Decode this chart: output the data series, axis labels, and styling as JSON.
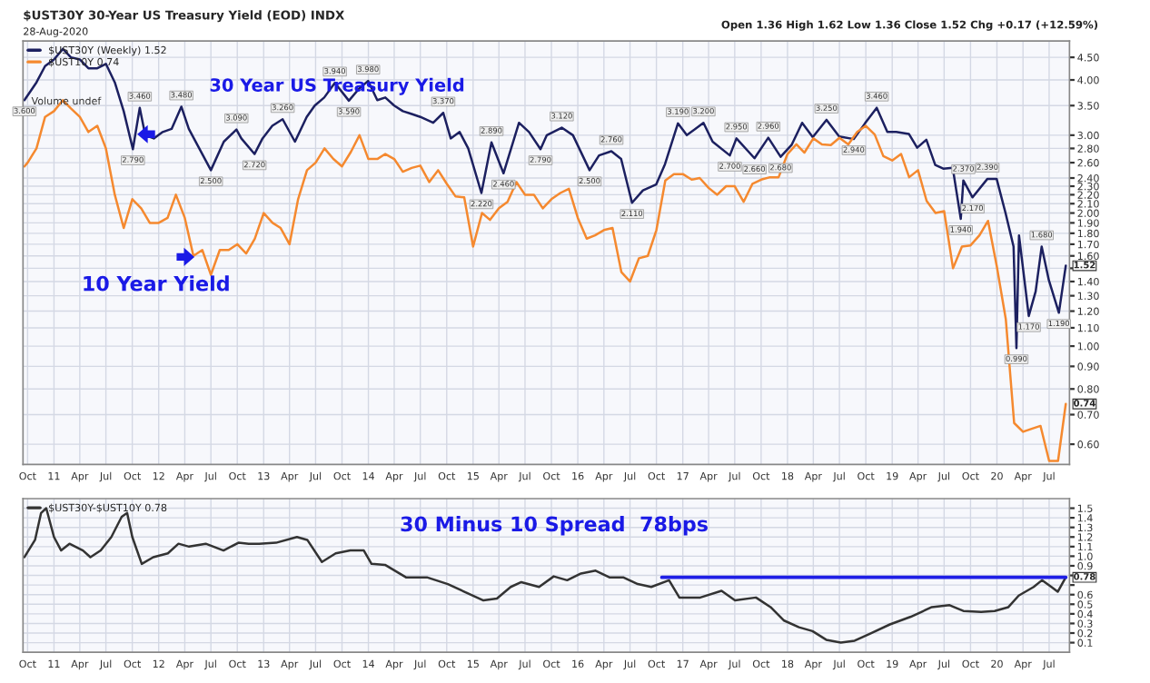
{
  "chart_data": [
    {
      "type": "line",
      "title": "$UST30Y 30-Year US Treasury Yield (EOD) INDX",
      "subtitle": "28-Aug-2020",
      "log": "y",
      "grid": true,
      "legend": "top left",
      "xlim": [
        "2010-09-15",
        "2020-09-10"
      ],
      "ylim": [
        0.54,
        4.9
      ],
      "xticks": [
        {
          "value": "2010-10-01",
          "label": "Oct"
        },
        {
          "value": "2011-01-01",
          "label": "11"
        },
        {
          "value": "2011-04-01",
          "label": "Apr"
        },
        {
          "value": "2011-07-01",
          "label": "Jul"
        },
        {
          "value": "2011-10-01",
          "label": "Oct"
        },
        {
          "value": "2012-01-01",
          "label": "12"
        },
        {
          "value": "2012-04-01",
          "label": "Apr"
        },
        {
          "value": "2012-07-01",
          "label": "Jul"
        },
        {
          "value": "2012-10-01",
          "label": "Oct"
        },
        {
          "value": "2013-01-01",
          "label": "13"
        },
        {
          "value": "2013-04-01",
          "label": "Apr"
        },
        {
          "value": "2013-07-01",
          "label": "Jul"
        },
        {
          "value": "2013-10-01",
          "label": "Oct"
        },
        {
          "value": "2014-01-01",
          "label": "14"
        },
        {
          "value": "2014-04-01",
          "label": "Apr"
        },
        {
          "value": "2014-07-01",
          "label": "Jul"
        },
        {
          "value": "2014-10-01",
          "label": "Oct"
        },
        {
          "value": "2015-01-01",
          "label": "15"
        },
        {
          "value": "2015-04-01",
          "label": "Apr"
        },
        {
          "value": "2015-07-01",
          "label": "Jul"
        },
        {
          "value": "2015-10-01",
          "label": "Oct"
        },
        {
          "value": "2016-01-01",
          "label": "16"
        },
        {
          "value": "2016-04-01",
          "label": "Apr"
        },
        {
          "value": "2016-07-01",
          "label": "Jul"
        },
        {
          "value": "2016-10-01",
          "label": "Oct"
        },
        {
          "value": "2017-01-01",
          "label": "17"
        },
        {
          "value": "2017-04-01",
          "label": "Apr"
        },
        {
          "value": "2017-07-01",
          "label": "Jul"
        },
        {
          "value": "2017-10-01",
          "label": "Oct"
        },
        {
          "value": "2018-01-01",
          "label": "18"
        },
        {
          "value": "2018-04-01",
          "label": "Apr"
        },
        {
          "value": "2018-07-01",
          "label": "Jul"
        },
        {
          "value": "2018-10-01",
          "label": "Oct"
        },
        {
          "value": "2019-01-01",
          "label": "19"
        },
        {
          "value": "2019-04-01",
          "label": "Apr"
        },
        {
          "value": "2019-07-01",
          "label": "Jul"
        },
        {
          "value": "2019-10-01",
          "label": "Oct"
        },
        {
          "value": "2020-01-01",
          "label": "20"
        },
        {
          "value": "2020-04-01",
          "label": "Apr"
        },
        {
          "value": "2020-07-01",
          "label": "Jul"
        }
      ],
      "yticks": [
        {
          "value": 0.6,
          "label": "0.60"
        },
        {
          "value": 0.7,
          "label": "0.70"
        },
        {
          "value": 0.8,
          "label": "0.80"
        },
        {
          "value": 0.9,
          "label": "0.90"
        },
        {
          "value": 1.0,
          "label": "1.00"
        },
        {
          "value": 1.1,
          "label": "1.10"
        },
        {
          "value": 1.2,
          "label": "1.20"
        },
        {
          "value": 1.3,
          "label": "1.30"
        },
        {
          "value": 1.4,
          "label": "1.40"
        },
        {
          "value": 1.5,
          "label": null
        },
        {
          "value": 1.6,
          "label": "1.60"
        },
        {
          "value": 1.7,
          "label": "1.70"
        },
        {
          "value": 1.8,
          "label": "1.80"
        },
        {
          "value": 1.9,
          "label": "1.90"
        },
        {
          "value": 2.0,
          "label": "2.00"
        },
        {
          "value": 2.1,
          "label": "2.10"
        },
        {
          "value": 2.2,
          "label": "2.20"
        },
        {
          "value": 2.3,
          "label": "2.30"
        },
        {
          "value": 2.4,
          "label": "2.40"
        },
        {
          "value": 2.6,
          "label": "2.60"
        },
        {
          "value": 2.8,
          "label": "2.80"
        },
        {
          "value": 3.0,
          "label": "3.00"
        },
        {
          "value": 3.5,
          "label": "3.50"
        },
        {
          "value": 4.0,
          "label": "4.00"
        },
        {
          "value": 4.5,
          "label": "4.50"
        }
      ],
      "series": [
        {
          "name": "$UST30Y (Weekly) 1.52",
          "color": "#1c2060",
          "x": [
            "2010-09-20",
            "2010-11-01",
            "2010-12-01",
            "2011-01-01",
            "2011-02-01",
            "2011-03-01",
            "2011-04-01",
            "2011-05-01",
            "2011-06-01",
            "2011-07-01",
            "2011-08-01",
            "2011-09-01",
            "2011-10-03",
            "2011-10-27",
            "2011-11-15",
            "2011-12-15",
            "2012-01-15",
            "2012-02-15",
            "2012-03-20",
            "2012-04-15",
            "2012-05-15",
            "2012-07-01",
            "2012-08-15",
            "2012-09-28",
            "2012-10-15",
            "2012-11-30",
            "2012-12-28",
            "2013-01-31",
            "2013-03-08",
            "2013-04-20",
            "2013-05-31",
            "2013-06-28",
            "2013-07-31",
            "2013-09-06",
            "2013-10-25",
            "2013-11-29",
            "2013-12-31",
            "2014-02-01",
            "2014-03-01",
            "2014-04-01",
            "2014-05-01",
            "2014-06-01",
            "2014-07-01",
            "2014-08-15",
            "2014-09-19",
            "2014-10-15",
            "2014-11-15",
            "2014-12-15",
            "2015-01-30",
            "2015-03-06",
            "2015-04-17",
            "2015-06-10",
            "2015-07-15",
            "2015-08-24",
            "2015-09-15",
            "2015-11-06",
            "2015-12-15",
            "2016-02-11",
            "2016-03-15",
            "2016-04-27",
            "2016-05-31",
            "2016-07-08",
            "2016-08-15",
            "2016-09-30",
            "2016-10-31",
            "2016-12-15",
            "2017-01-15",
            "2017-03-14",
            "2017-04-15",
            "2017-06-14",
            "2017-07-07",
            "2017-09-08",
            "2017-10-26",
            "2017-12-08",
            "2018-01-15",
            "2018-02-21",
            "2018-03-30",
            "2018-05-17",
            "2018-06-30",
            "2018-08-20",
            "2018-09-28",
            "2018-11-08",
            "2018-12-15",
            "2019-01-15",
            "2019-02-28",
            "2019-03-29",
            "2019-04-30",
            "2019-05-31",
            "2019-06-28",
            "2019-07-31",
            "2019-08-28",
            "2019-09-06",
            "2019-10-08",
            "2019-11-29",
            "2019-12-31",
            "2020-01-31",
            "2020-02-28",
            "2020-03-09",
            "2020-03-18",
            "2020-04-21",
            "2020-05-15",
            "2020-06-05",
            "2020-06-30",
            "2020-08-04",
            "2020-08-28"
          ],
          "values": [
            3.6,
            3.95,
            4.3,
            4.45,
            4.7,
            4.5,
            4.45,
            4.25,
            4.25,
            4.35,
            3.95,
            3.4,
            2.79,
            3.46,
            3.0,
            2.95,
            3.05,
            3.1,
            3.48,
            3.1,
            2.85,
            2.5,
            2.9,
            3.09,
            2.95,
            2.72,
            2.95,
            3.15,
            3.26,
            2.9,
            3.3,
            3.5,
            3.65,
            3.94,
            3.59,
            3.82,
            3.98,
            3.6,
            3.65,
            3.5,
            3.4,
            3.35,
            3.3,
            3.2,
            3.37,
            2.95,
            3.05,
            2.8,
            2.22,
            2.89,
            2.46,
            3.2,
            3.05,
            2.79,
            3.0,
            3.12,
            3.0,
            2.5,
            2.7,
            2.76,
            2.65,
            2.11,
            2.25,
            2.32,
            2.58,
            3.19,
            3.0,
            3.2,
            2.9,
            2.7,
            2.95,
            2.66,
            2.96,
            2.68,
            2.85,
            3.2,
            2.97,
            3.25,
            2.98,
            2.94,
            3.19,
            3.46,
            3.05,
            3.05,
            3.02,
            2.81,
            2.93,
            2.57,
            2.52,
            2.53,
            1.94,
            2.37,
            2.17,
            2.39,
            2.39,
            2.0,
            1.68,
            0.99,
            1.78,
            1.17,
            1.33,
            1.68,
            1.41,
            1.19,
            1.52
          ]
        },
        {
          "name": "$UST10Y 0.74",
          "color": "#f5892f",
          "x": [
            "2010-09-20",
            "2010-10-01",
            "2010-11-01",
            "2010-12-01",
            "2011-01-01",
            "2011-02-01",
            "2011-03-01",
            "2011-04-01",
            "2011-05-01",
            "2011-06-01",
            "2011-07-01",
            "2011-08-01",
            "2011-09-01",
            "2011-10-01",
            "2011-11-01",
            "2011-12-01",
            "2012-01-01",
            "2012-02-01",
            "2012-03-01",
            "2012-04-01",
            "2012-05-01",
            "2012-06-01",
            "2012-07-01",
            "2012-08-01",
            "2012-09-01",
            "2012-10-01",
            "2012-11-01",
            "2012-12-01",
            "2013-01-01",
            "2013-02-01",
            "2013-03-01",
            "2013-04-01",
            "2013-05-01",
            "2013-06-01",
            "2013-07-01",
            "2013-08-01",
            "2013-09-01",
            "2013-10-01",
            "2013-11-01",
            "2013-12-01",
            "2014-01-01",
            "2014-02-01",
            "2014-03-01",
            "2014-04-01",
            "2014-05-01",
            "2014-06-01",
            "2014-07-01",
            "2014-08-01",
            "2014-09-01",
            "2014-10-01",
            "2014-11-01",
            "2014-12-01",
            "2015-01-01",
            "2015-02-01",
            "2015-03-01",
            "2015-04-01",
            "2015-05-01",
            "2015-06-01",
            "2015-07-01",
            "2015-08-01",
            "2015-09-01",
            "2015-10-01",
            "2015-11-01",
            "2015-12-01",
            "2016-01-01",
            "2016-02-01",
            "2016-03-01",
            "2016-04-01",
            "2016-05-01",
            "2016-06-01",
            "2016-07-01",
            "2016-08-01",
            "2016-09-01",
            "2016-10-01",
            "2016-11-01",
            "2016-12-01",
            "2017-01-01",
            "2017-02-01",
            "2017-03-01",
            "2017-04-01",
            "2017-05-01",
            "2017-06-01",
            "2017-07-01",
            "2017-08-01",
            "2017-09-01",
            "2017-10-01",
            "2017-11-01",
            "2017-12-01",
            "2018-01-01",
            "2018-02-01",
            "2018-03-01",
            "2018-04-01",
            "2018-05-01",
            "2018-06-01",
            "2018-07-01",
            "2018-08-01",
            "2018-09-01",
            "2018-10-01",
            "2018-11-01",
            "2018-12-01",
            "2019-01-01",
            "2019-02-01",
            "2019-03-01",
            "2019-04-01",
            "2019-05-01",
            "2019-06-01",
            "2019-07-01",
            "2019-08-01",
            "2019-09-01",
            "2019-10-01",
            "2019-11-01",
            "2019-12-01",
            "2020-01-01",
            "2020-02-01",
            "2020-03-01",
            "2020-04-01",
            "2020-05-01",
            "2020-06-01",
            "2020-07-01",
            "2020-08-01",
            "2020-08-28"
          ],
          "values": [
            2.55,
            2.6,
            2.8,
            3.3,
            3.4,
            3.6,
            3.45,
            3.3,
            3.05,
            3.15,
            2.8,
            2.2,
            1.85,
            2.15,
            2.05,
            1.9,
            1.9,
            1.95,
            2.2,
            1.95,
            1.6,
            1.65,
            1.45,
            1.65,
            1.65,
            1.7,
            1.62,
            1.75,
            2.0,
            1.9,
            1.85,
            1.7,
            2.15,
            2.5,
            2.6,
            2.8,
            2.65,
            2.55,
            2.75,
            3.0,
            2.65,
            2.65,
            2.72,
            2.65,
            2.48,
            2.53,
            2.56,
            2.35,
            2.5,
            2.33,
            2.18,
            2.17,
            1.68,
            2.0,
            1.93,
            2.05,
            2.12,
            2.35,
            2.2,
            2.2,
            2.05,
            2.15,
            2.22,
            2.27,
            1.95,
            1.75,
            1.78,
            1.83,
            1.85,
            1.47,
            1.4,
            1.58,
            1.6,
            1.83,
            2.37,
            2.45,
            2.45,
            2.38,
            2.4,
            2.28,
            2.2,
            2.3,
            2.3,
            2.12,
            2.33,
            2.38,
            2.41,
            2.41,
            2.72,
            2.86,
            2.74,
            2.95,
            2.86,
            2.85,
            2.96,
            2.86,
            3.05,
            3.15,
            3.01,
            2.69,
            2.63,
            2.72,
            2.41,
            2.5,
            2.13,
            2.0,
            2.02,
            1.5,
            1.68,
            1.69,
            1.78,
            1.92,
            1.51,
            1.15,
            0.67,
            0.64,
            0.65,
            0.66,
            0.55,
            0.55,
            0.74
          ]
        }
      ],
      "annotations": [
        "Open 1.36 High 1.62 Low 1.36 Close 1.52 Chg +0.17 (+12.59%)",
        "Volume undef",
        "30 Year US Treasury Yield",
        "10 Year Yield",
        {
          "text": "1.52",
          "x": "2020-08-28",
          "y": 1.52
        },
        {
          "text": "0.74",
          "x": "2020-08-28",
          "y": 0.74
        },
        {
          "text": "3.600",
          "x": "2010-09-20",
          "y": 3.6
        },
        {
          "text": "2.790",
          "x": "2011-10-03",
          "y": 2.79
        },
        {
          "text": "3.460",
          "x": "2011-10-27",
          "y": 3.46
        },
        {
          "text": "3.480",
          "x": "2012-03-20",
          "y": 3.48
        },
        {
          "text": "2.500",
          "x": "2012-07-01",
          "y": 2.5
        },
        {
          "text": "3.090",
          "x": "2012-09-28",
          "y": 3.09
        },
        {
          "text": "2.720",
          "x": "2012-11-30",
          "y": 2.72
        },
        {
          "text": "3.260",
          "x": "2013-03-08",
          "y": 3.26
        },
        {
          "text": "3.940",
          "x": "2013-09-06",
          "y": 3.94
        },
        {
          "text": "3.590",
          "x": "2013-10-25",
          "y": 3.59
        },
        {
          "text": "3.980",
          "x": "2013-12-31",
          "y": 3.98
        },
        {
          "text": "3.370",
          "x": "2014-09-19",
          "y": 3.37
        },
        {
          "text": "2.220",
          "x": "2015-01-30",
          "y": 2.22
        },
        {
          "text": "2.890",
          "x": "2015-03-06",
          "y": 2.89
        },
        {
          "text": "2.460",
          "x": "2015-04-17",
          "y": 2.46
        },
        {
          "text": "2.790",
          "x": "2015-08-24",
          "y": 2.79
        },
        {
          "text": "3.120",
          "x": "2015-11-06",
          "y": 3.12
        },
        {
          "text": "2.500",
          "x": "2016-02-11",
          "y": 2.5
        },
        {
          "text": "2.760",
          "x": "2016-04-27",
          "y": 2.76
        },
        {
          "text": "2.110",
          "x": "2016-07-08",
          "y": 2.11
        },
        {
          "text": "3.190",
          "x": "2016-12-15",
          "y": 3.19
        },
        {
          "text": "3.200",
          "x": "2017-03-14",
          "y": 3.2
        },
        {
          "text": "2.700",
          "x": "2017-06-14",
          "y": 2.7
        },
        {
          "text": "2.950",
          "x": "2017-07-07",
          "y": 2.95
        },
        {
          "text": "2.660",
          "x": "2017-09-08",
          "y": 2.66
        },
        {
          "text": "2.960",
          "x": "2017-10-26",
          "y": 2.96
        },
        {
          "text": "2.680",
          "x": "2017-12-08",
          "y": 2.68
        },
        {
          "text": "3.250",
          "x": "2018-05-17",
          "y": 3.25
        },
        {
          "text": "2.940",
          "x": "2018-08-20",
          "y": 2.94
        },
        {
          "text": "3.460",
          "x": "2018-11-08",
          "y": 3.46
        },
        {
          "text": "1.940",
          "x": "2019-08-28",
          "y": 1.94
        },
        {
          "text": "2.370",
          "x": "2019-09-06",
          "y": 2.37
        },
        {
          "text": "2.170",
          "x": "2019-10-08",
          "y": 2.17
        },
        {
          "text": "2.390",
          "x": "2019-11-29",
          "y": 2.39
        },
        {
          "text": "0.990",
          "x": "2020-03-09",
          "y": 0.99
        },
        {
          "text": "1.170",
          "x": "2020-04-21",
          "y": 1.17
        },
        {
          "text": "1.680",
          "x": "2020-06-05",
          "y": 1.68
        },
        {
          "text": "1.190",
          "x": "2020-08-04",
          "y": 1.19
        }
      ]
    },
    {
      "type": "line",
      "grid": true,
      "legend": "top left",
      "xlim": [
        "2010-09-15",
        "2020-09-10"
      ],
      "ylim": [
        0.0,
        1.6
      ],
      "xticks": [
        {
          "value": "2010-10-01",
          "label": "Oct"
        },
        {
          "value": "2011-01-01",
          "label": "11"
        },
        {
          "value": "2011-04-01",
          "label": "Apr"
        },
        {
          "value": "2011-07-01",
          "label": "Jul"
        },
        {
          "value": "2011-10-01",
          "label": "Oct"
        },
        {
          "value": "2012-01-01",
          "label": "12"
        },
        {
          "value": "2012-04-01",
          "label": "Apr"
        },
        {
          "value": "2012-07-01",
          "label": "Jul"
        },
        {
          "value": "2012-10-01",
          "label": "Oct"
        },
        {
          "value": "2013-01-01",
          "label": "13"
        },
        {
          "value": "2013-04-01",
          "label": "Apr"
        },
        {
          "value": "2013-07-01",
          "label": "Jul"
        },
        {
          "value": "2013-10-01",
          "label": "Oct"
        },
        {
          "value": "2014-01-01",
          "label": "14"
        },
        {
          "value": "2014-04-01",
          "label": "Apr"
        },
        {
          "value": "2014-07-01",
          "label": "Jul"
        },
        {
          "value": "2014-10-01",
          "label": "Oct"
        },
        {
          "value": "2015-01-01",
          "label": "15"
        },
        {
          "value": "2015-04-01",
          "label": "Apr"
        },
        {
          "value": "2015-07-01",
          "label": "Jul"
        },
        {
          "value": "2015-10-01",
          "label": "Oct"
        },
        {
          "value": "2016-01-01",
          "label": "16"
        },
        {
          "value": "2016-04-01",
          "label": "Apr"
        },
        {
          "value": "2016-07-01",
          "label": "Jul"
        },
        {
          "value": "2016-10-01",
          "label": "Oct"
        },
        {
          "value": "2017-01-01",
          "label": "17"
        },
        {
          "value": "2017-04-01",
          "label": "Apr"
        },
        {
          "value": "2017-07-01",
          "label": "Jul"
        },
        {
          "value": "2017-10-01",
          "label": "Oct"
        },
        {
          "value": "2018-01-01",
          "label": "18"
        },
        {
          "value": "2018-04-01",
          "label": "Apr"
        },
        {
          "value": "2018-07-01",
          "label": "Jul"
        },
        {
          "value": "2018-10-01",
          "label": "Oct"
        },
        {
          "value": "2019-01-01",
          "label": "19"
        },
        {
          "value": "2019-04-01",
          "label": "Apr"
        },
        {
          "value": "2019-07-01",
          "label": "Jul"
        },
        {
          "value": "2019-10-01",
          "label": "Oct"
        },
        {
          "value": "2020-01-01",
          "label": "20"
        },
        {
          "value": "2020-04-01",
          "label": "Apr"
        },
        {
          "value": "2020-07-01",
          "label": "Jul"
        }
      ],
      "yticks": [
        0.1,
        0.2,
        0.3,
        0.4,
        0.5,
        0.6,
        {
          "value": 0.7,
          "label": null
        },
        {
          "value": 0.8,
          "label": null
        },
        0.9,
        {
          "value": 1.0,
          "label": "1.0"
        },
        1.1,
        1.2,
        1.3,
        1.4,
        1.5
      ],
      "series": [
        {
          "name": "$UST30Y-$UST10Y 0.78",
          "color": "#333333",
          "x": [
            "2010-09-20",
            "2010-10-27",
            "2010-11-17",
            "2010-12-05",
            "2011-01-01",
            "2011-01-26",
            "2011-02-24",
            "2011-04-12",
            "2011-05-08",
            "2011-06-13",
            "2011-07-20",
            "2011-08-25",
            "2011-09-13",
            "2011-10-01",
            "2011-11-03",
            "2011-12-13",
            "2012-02-02",
            "2012-03-10",
            "2012-04-16",
            "2012-06-13",
            "2012-08-14",
            "2012-10-05",
            "2012-11-10",
            "2012-12-16",
            "2013-02-13",
            "2013-04-27",
            "2013-06-02",
            "2013-07-23",
            "2013-09-09",
            "2013-10-30",
            "2013-12-16",
            "2014-01-12",
            "2014-02-28",
            "2014-05-12",
            "2014-07-24",
            "2014-10-05",
            "2014-12-16",
            "2015-02-06",
            "2015-03-25",
            "2015-05-12",
            "2015-06-18",
            "2015-08-19",
            "2015-10-09",
            "2015-11-25",
            "2016-01-12",
            "2016-03-03",
            "2016-04-20",
            "2016-06-07",
            "2016-07-28",
            "2016-09-13",
            "2016-11-14",
            "2016-12-20",
            "2017-03-03",
            "2017-05-16",
            "2017-07-02",
            "2017-09-13",
            "2017-11-03",
            "2017-12-20",
            "2018-02-10",
            "2018-03-29",
            "2018-05-16",
            "2018-07-06",
            "2018-08-23",
            "2018-10-13",
            "2018-12-24",
            "2019-03-07",
            "2019-05-19",
            "2019-07-20",
            "2019-09-06",
            "2019-11-07",
            "2019-12-24",
            "2020-02-10",
            "2020-03-17",
            "2020-05-08",
            "2020-06-06",
            "2020-07-09",
            "2020-07-31",
            "2020-08-28"
          ],
          "values": [
            0.99,
            1.17,
            1.45,
            1.5,
            1.2,
            1.06,
            1.13,
            1.06,
            0.99,
            1.06,
            1.2,
            1.41,
            1.45,
            1.2,
            0.92,
            0.99,
            1.03,
            1.13,
            1.1,
            1.13,
            1.06,
            1.14,
            1.13,
            1.13,
            1.14,
            1.2,
            1.17,
            0.94,
            1.03,
            1.06,
            1.06,
            0.92,
            0.91,
            0.78,
            0.78,
            0.71,
            0.61,
            0.54,
            0.56,
            0.68,
            0.73,
            0.68,
            0.79,
            0.75,
            0.82,
            0.85,
            0.78,
            0.78,
            0.71,
            0.68,
            0.75,
            0.57,
            0.57,
            0.64,
            0.54,
            0.57,
            0.47,
            0.33,
            0.26,
            0.22,
            0.13,
            0.1,
            0.12,
            0.19,
            0.29,
            0.37,
            0.47,
            0.49,
            0.43,
            0.42,
            0.43,
            0.47,
            0.59,
            0.68,
            0.75,
            0.68,
            0.63,
            0.78
          ]
        },
        {
          "color": "#1f1fe6",
          "x": [
            "2016-10-20",
            "2020-08-28"
          ],
          "values": [
            0.78,
            0.78
          ]
        }
      ],
      "annotations": [
        "30 Minus 10 Spread  78bps",
        {
          "text": "0.78",
          "x": "2020-08-28",
          "y": 0.78
        }
      ]
    }
  ]
}
